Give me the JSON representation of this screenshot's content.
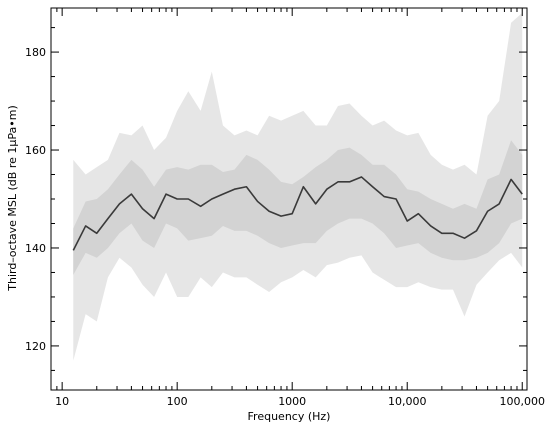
{
  "chart_data": {
    "type": "area",
    "title": "",
    "xlabel": "Frequency (Hz)",
    "ylabel": "Third–octave MSL (dB re 1μPa•m)",
    "xscale": "log",
    "xlim": [
      8,
      110000
    ],
    "ylim": [
      111,
      189
    ],
    "x_ticks": [
      {
        "value": 10,
        "label": "10"
      },
      {
        "value": 100,
        "label": "100"
      },
      {
        "value": 1000,
        "label": "1000"
      },
      {
        "value": 10000,
        "label": "10,000"
      },
      {
        "value": 100000,
        "label": "100,000"
      }
    ],
    "y_ticks": [
      {
        "value": 120,
        "label": "120"
      },
      {
        "value": 140,
        "label": "140"
      },
      {
        "value": 160,
        "label": "160"
      },
      {
        "value": 180,
        "label": "180"
      }
    ],
    "grid": false,
    "legend": "none",
    "x": [
      12.5,
      16,
      20,
      25,
      31.5,
      40,
      50,
      63,
      80,
      100,
      125,
      160,
      200,
      250,
      315,
      400,
      500,
      630,
      800,
      1000,
      1250,
      1600,
      2000,
      2500,
      3150,
      4000,
      5000,
      6300,
      8000,
      10000,
      12500,
      16000,
      20000,
      25000,
      31500,
      40000,
      50000,
      63000,
      80000,
      100000
    ],
    "series": [
      {
        "role": "outer_band_upper",
        "values": [
          158,
          155,
          156.5,
          158,
          163.5,
          163,
          165,
          160,
          162.5,
          168,
          172,
          168,
          176,
          165,
          163,
          164,
          163,
          167,
          166,
          167,
          168,
          165,
          165,
          169,
          169.5,
          167,
          165,
          166,
          164,
          163,
          163.5,
          159,
          157,
          156,
          157,
          155,
          167,
          170,
          186,
          188
        ]
      },
      {
        "role": "inner_band_upper",
        "values": [
          144,
          149.5,
          150,
          152,
          155,
          158,
          156,
          152.5,
          156,
          156.5,
          156,
          157,
          157,
          155.5,
          156,
          159,
          158,
          156,
          153.5,
          153,
          154.5,
          156.5,
          158,
          160,
          160.5,
          159,
          157,
          157,
          155,
          152,
          151.5,
          150,
          149,
          148,
          149,
          148,
          154,
          155,
          162,
          159
        ]
      },
      {
        "role": "median",
        "values": [
          139.5,
          144.5,
          143,
          146,
          149,
          151,
          148,
          146,
          151,
          150,
          150,
          148.5,
          150,
          151,
          152,
          152.5,
          149.5,
          147.5,
          146.5,
          147,
          152.5,
          149,
          152,
          153.5,
          153.5,
          154.5,
          152.5,
          150.5,
          150,
          145.5,
          147,
          144.5,
          143,
          143,
          142,
          143.5,
          147.5,
          149,
          154,
          151
        ]
      },
      {
        "role": "inner_band_lower",
        "values": [
          134.5,
          139,
          138,
          140,
          143,
          145,
          141.5,
          140,
          145,
          144,
          141.5,
          142,
          142.5,
          144.5,
          143.5,
          143.5,
          142.5,
          141,
          140,
          140.5,
          141,
          141,
          143.5,
          145,
          146,
          146,
          145,
          143,
          140,
          140.5,
          141,
          139,
          138,
          137.5,
          137.5,
          138,
          139,
          141,
          145,
          146
        ]
      },
      {
        "role": "outer_band_lower",
        "values": [
          117,
          126.5,
          125,
          134,
          138,
          136,
          132.5,
          130,
          135,
          130,
          130,
          134,
          132,
          135,
          134,
          134,
          132.5,
          131,
          133,
          134,
          135.5,
          134,
          136.5,
          137,
          138,
          138.5,
          135,
          133.5,
          132,
          132,
          133,
          132,
          131.5,
          131.5,
          126,
          132.5,
          135,
          137.5,
          139,
          136
        ]
      }
    ],
    "colors": {
      "outer_band": "#e6e6e6",
      "inner_band": "#d3d3d3",
      "median_line": "#3a3a3a",
      "axis": "#000000"
    }
  }
}
